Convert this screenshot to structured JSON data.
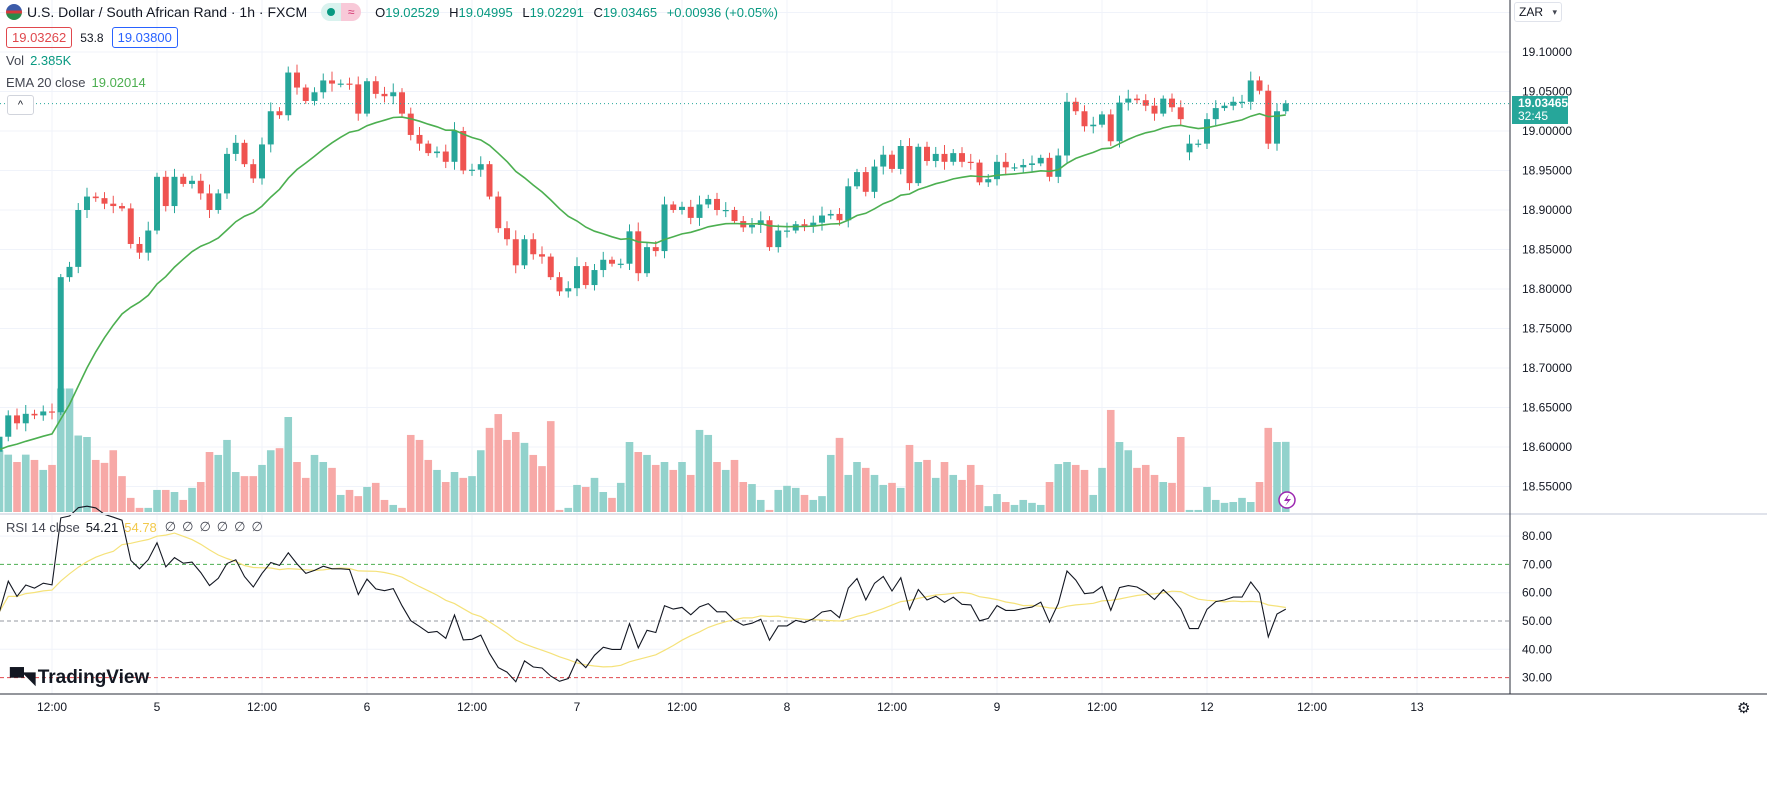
{
  "header": {
    "symbol_title": "U.S. Dollar / South African Rand · 1h · FXCM",
    "market_status_icon": "green-dot",
    "replay_badge_icon": "≈",
    "ohlc": {
      "o_label": "O",
      "o": "19.02529",
      "h_label": "H",
      "h": "19.04995",
      "l_label": "L",
      "l": "19.02291",
      "c_label": "C",
      "c": "19.03465",
      "change": "+0.00936 (+0.05%)"
    },
    "sell_price": "19.03262",
    "spread": "53.8",
    "buy_price": "19.03800",
    "collapse_icon": "^"
  },
  "indicators": {
    "vol_label": "Vol",
    "vol_value": "2.385K",
    "ema_label": "EMA 20 close",
    "ema_value": "19.02014",
    "rsi_label": "RSI 14 close",
    "rsi_value": "54.21",
    "rsi_ma_value": "54.78",
    "rsi_nil": [
      "∅",
      "∅",
      "∅",
      "∅",
      "∅",
      "∅"
    ]
  },
  "price_axis": {
    "currency": "ZAR",
    "labels": [
      "19.10000",
      "19.05000",
      "19.00000",
      "18.95000",
      "18.90000",
      "18.85000",
      "18.80000",
      "18.75000",
      "18.70000",
      "18.65000",
      "18.60000",
      "18.55000"
    ],
    "last_price": "19.03465",
    "countdown": "32:45"
  },
  "rsi_axis": {
    "labels": [
      "80.00",
      "70.00",
      "60.00",
      "50.00",
      "40.00",
      "30.00"
    ]
  },
  "brand": "TradingView",
  "colors": {
    "up": "#26a69a",
    "down": "#ef5350",
    "vol_up": "#92d2cc",
    "vol_down": "#f7a9a7",
    "ema": "#4caf50",
    "rsi": "#131722",
    "rsi_ma": "#f5e27a"
  },
  "chart_data": {
    "type": "candlestick",
    "title": "U.S. Dollar / South African Rand · 1h · FXCM",
    "interval": "1h",
    "x_tick_labels": [
      "12:00",
      "5",
      "12:00",
      "6",
      "12:00",
      "7",
      "12:00",
      "8",
      "12:00",
      "9",
      "12:00",
      "12",
      "12:00",
      "13"
    ],
    "x_tick_every_bars": 12,
    "first_tick_bar": 6,
    "ylim": [
      18.55,
      19.1
    ],
    "ygrid_step": 0.05,
    "open_overrides": {
      "0": 18.594,
      "136": 18.973
    },
    "close": [
      18.613,
      18.64,
      18.63,
      18.642,
      18.64,
      18.645,
      18.644,
      18.815,
      18.828,
      18.9,
      18.917,
      18.915,
      18.908,
      18.905,
      18.902,
      18.857,
      18.846,
      18.874,
      18.942,
      18.905,
      18.942,
      18.933,
      18.937,
      18.921,
      18.9,
      18.921,
      18.971,
      18.985,
      18.958,
      18.94,
      18.983,
      19.025,
      19.02,
      19.074,
      19.055,
      19.038,
      19.049,
      19.064,
      19.06,
      19.06,
      19.059,
      19.022,
      19.063,
      19.047,
      19.044,
      19.049,
      19.022,
      18.995,
      18.984,
      18.972,
      18.974,
      18.961,
      19.0,
      18.95,
      18.951,
      18.958,
      18.917,
      18.877,
      18.863,
      18.83,
      18.863,
      18.844,
      18.841,
      18.815,
      18.797,
      18.801,
      18.829,
      18.805,
      18.824,
      18.837,
      18.832,
      18.832,
      18.873,
      18.82,
      18.853,
      18.848,
      18.907,
      18.9,
      18.904,
      18.89,
      18.907,
      18.914,
      18.9,
      18.9,
      18.886,
      18.878,
      18.881,
      18.887,
      18.853,
      18.874,
      18.874,
      18.882,
      18.879,
      18.884,
      18.893,
      18.895,
      18.887,
      18.93,
      18.948,
      18.923,
      18.955,
      18.97,
      18.952,
      18.981,
      18.934,
      18.98,
      18.962,
      18.971,
      18.961,
      18.972,
      18.961,
      18.96,
      18.935,
      18.939,
      18.961,
      18.954,
      18.954,
      18.957,
      18.959,
      18.966,
      18.942,
      18.969,
      19.037,
      19.025,
      19.006,
      19.008,
      19.021,
      18.987,
      19.036,
      19.041,
      19.039,
      19.032,
      19.022,
      19.041,
      19.03,
      19.015,
      18.984,
      18.984,
      19.015,
      19.029,
      19.032,
      19.037,
      19.037,
      19.064,
      19.051,
      18.984,
      19.025,
      19.035
    ],
    "volume": [
      2100,
      1950,
      1700,
      1950,
      1770,
      1430,
      1600,
      4200,
      4200,
      2600,
      2550,
      1770,
      1670,
      2100,
      1220,
      480,
      140,
      140,
      750,
      750,
      680,
      410,
      820,
      1020,
      2040,
      1940,
      2450,
      1360,
      1220,
      1220,
      1600,
      2100,
      2170,
      3230,
      1700,
      1160,
      1940,
      1700,
      1500,
      580,
      750,
      540,
      850,
      990,
      410,
      240,
      140,
      2620,
      2450,
      1770,
      1430,
      1020,
      1360,
      1160,
      1220,
      2100,
      2860,
      3330,
      2450,
      2720,
      2350,
      1940,
      1560,
      3090,
      70,
      140,
      920,
      850,
      1160,
      680,
      480,
      990,
      2380,
      2040,
      1940,
      1600,
      1700,
      1430,
      1700,
      1260,
      2790,
      2620,
      1700,
      1430,
      1770,
      1020,
      950,
      410,
      70,
      750,
      890,
      820,
      580,
      410,
      540,
      1940,
      2520,
      1260,
      1700,
      1500,
      1260,
      920,
      990,
      820,
      2280,
      1700,
      1770,
      1160,
      1700,
      1260,
      1090,
      1600,
      920,
      200,
      610,
      340,
      240,
      410,
      310,
      240,
      1020,
      1630,
      1700,
      1600,
      1430,
      580,
      1500,
      3470,
      2380,
      2100,
      1500,
      1600,
      1260,
      1020,
      990,
      2550,
      70,
      70,
      850,
      410,
      310,
      340,
      480,
      340,
      1020,
      2860,
      2380,
      2385
    ],
    "ema_period": 20,
    "rsi_period": 14,
    "rsi_levels": [
      70,
      50,
      30
    ],
    "rsi_ylim": [
      25,
      85
    ]
  }
}
